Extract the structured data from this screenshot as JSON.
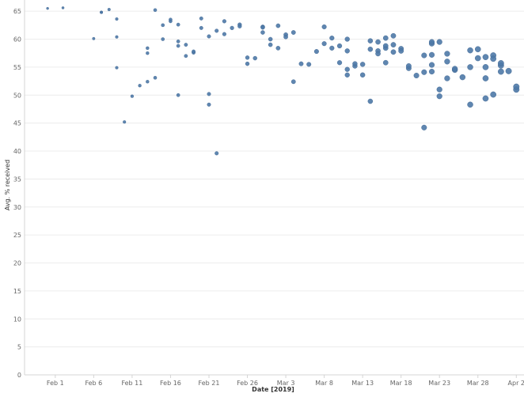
{
  "chart_data": {
    "type": "scatter",
    "title": "",
    "xlabel": "Date [2019]",
    "ylabel": "Avg. % received",
    "ylim": [
      0,
      67
    ],
    "xlim": [
      "2019-01-28",
      "2019-04-03"
    ],
    "grid": true,
    "x_ticks": [
      {
        "date": "2019-02-01",
        "label": "Feb 1"
      },
      {
        "date": "2019-02-06",
        "label": "Feb 6"
      },
      {
        "date": "2019-02-11",
        "label": "Feb 11"
      },
      {
        "date": "2019-02-16",
        "label": "Feb 16"
      },
      {
        "date": "2019-02-21",
        "label": "Feb 21"
      },
      {
        "date": "2019-02-26",
        "label": "Feb 26"
      },
      {
        "date": "2019-03-03",
        "label": "Mar 3"
      },
      {
        "date": "2019-03-08",
        "label": "Mar 8"
      },
      {
        "date": "2019-03-13",
        "label": "Mar 13"
      },
      {
        "date": "2019-03-18",
        "label": "Mar 18"
      },
      {
        "date": "2019-03-23",
        "label": "Mar 23"
      },
      {
        "date": "2019-03-28",
        "label": "Mar 28"
      },
      {
        "date": "2019-04-02",
        "label": "Apr 2"
      }
    ],
    "y_ticks": [
      0,
      5,
      10,
      15,
      20,
      25,
      30,
      35,
      40,
      45,
      50,
      55,
      60,
      65
    ],
    "series": [
      {
        "points": [
          [
            "2019-01-31",
            65.5
          ],
          [
            "2019-02-02",
            65.6
          ],
          [
            "2019-02-06",
            60.1
          ],
          [
            "2019-02-07",
            64.8
          ],
          [
            "2019-02-07",
            64.8
          ],
          [
            "2019-02-08",
            65.3
          ],
          [
            "2019-02-09",
            63.6
          ],
          [
            "2019-02-09",
            54.9
          ],
          [
            "2019-02-09",
            60.4
          ],
          [
            "2019-02-10",
            45.2
          ],
          [
            "2019-02-11",
            49.8
          ],
          [
            "2019-02-12",
            51.7
          ],
          [
            "2019-02-13",
            58.4
          ],
          [
            "2019-02-13",
            57.5
          ],
          [
            "2019-02-13",
            52.4
          ],
          [
            "2019-02-14",
            53.1
          ],
          [
            "2019-02-14",
            65.2
          ],
          [
            "2019-02-15",
            62.5
          ],
          [
            "2019-02-15",
            60.0
          ],
          [
            "2019-02-16",
            63.2
          ],
          [
            "2019-02-16",
            63.5
          ],
          [
            "2019-02-17",
            62.6
          ],
          [
            "2019-02-17",
            59.6
          ],
          [
            "2019-02-17",
            58.8
          ],
          [
            "2019-02-17",
            50.0
          ],
          [
            "2019-02-18",
            59.0
          ],
          [
            "2019-02-18",
            57.0
          ],
          [
            "2019-02-19",
            57.6
          ],
          [
            "2019-02-19",
            57.8
          ],
          [
            "2019-02-20",
            62.0
          ],
          [
            "2019-02-20",
            63.7
          ],
          [
            "2019-02-21",
            60.5
          ],
          [
            "2019-02-21",
            50.2
          ],
          [
            "2019-02-21",
            48.3
          ],
          [
            "2019-02-22",
            39.6
          ],
          [
            "2019-02-22",
            61.5
          ],
          [
            "2019-02-23",
            63.2
          ],
          [
            "2019-02-23",
            60.9
          ],
          [
            "2019-02-24",
            62.0
          ],
          [
            "2019-02-25",
            62.6
          ],
          [
            "2019-02-25",
            62.3
          ],
          [
            "2019-02-26",
            56.7
          ],
          [
            "2019-02-26",
            55.6
          ],
          [
            "2019-02-27",
            56.6
          ],
          [
            "2019-02-28",
            62.2
          ],
          [
            "2019-02-28",
            62.1
          ],
          [
            "2019-02-28",
            61.2
          ],
          [
            "2019-03-01",
            59.0
          ],
          [
            "2019-03-01",
            60.0
          ],
          [
            "2019-03-02",
            62.4
          ],
          [
            "2019-03-02",
            58.4
          ],
          [
            "2019-03-03",
            60.8
          ],
          [
            "2019-03-03",
            60.4
          ],
          [
            "2019-03-04",
            61.2
          ],
          [
            "2019-03-04",
            52.4
          ],
          [
            "2019-03-05",
            55.6
          ],
          [
            "2019-03-06",
            55.5
          ],
          [
            "2019-03-07",
            57.8
          ],
          [
            "2019-03-08",
            62.2
          ],
          [
            "2019-03-08",
            59.2
          ],
          [
            "2019-03-09",
            60.2
          ],
          [
            "2019-03-09",
            58.4
          ],
          [
            "2019-03-10",
            55.8
          ],
          [
            "2019-03-10",
            58.8
          ],
          [
            "2019-03-11",
            60.0
          ],
          [
            "2019-03-11",
            57.9
          ],
          [
            "2019-03-11",
            54.6
          ],
          [
            "2019-03-11",
            53.6
          ],
          [
            "2019-03-12",
            55.2
          ],
          [
            "2019-03-12",
            55.6
          ],
          [
            "2019-03-13",
            53.6
          ],
          [
            "2019-03-13",
            55.5
          ],
          [
            "2019-03-14",
            59.7
          ],
          [
            "2019-03-14",
            48.9
          ],
          [
            "2019-03-14",
            58.2
          ],
          [
            "2019-03-15",
            59.5
          ],
          [
            "2019-03-15",
            57.9
          ],
          [
            "2019-03-15",
            57.4
          ],
          [
            "2019-03-16",
            60.2
          ],
          [
            "2019-03-16",
            58.4
          ],
          [
            "2019-03-16",
            55.8
          ],
          [
            "2019-03-16",
            58.8
          ],
          [
            "2019-03-17",
            60.6
          ],
          [
            "2019-03-17",
            57.7
          ],
          [
            "2019-03-17",
            59.0
          ],
          [
            "2019-03-18",
            58.3
          ],
          [
            "2019-03-18",
            57.9
          ],
          [
            "2019-03-19",
            54.8
          ],
          [
            "2019-03-19",
            55.2
          ],
          [
            "2019-03-20",
            53.5
          ],
          [
            "2019-03-21",
            54.1
          ],
          [
            "2019-03-21",
            44.2
          ],
          [
            "2019-03-21",
            57.1
          ],
          [
            "2019-03-22",
            54.2
          ],
          [
            "2019-03-22",
            55.4
          ],
          [
            "2019-03-22",
            57.2
          ],
          [
            "2019-03-22",
            59.2
          ],
          [
            "2019-03-22",
            59.5
          ],
          [
            "2019-03-23",
            51.0
          ],
          [
            "2019-03-23",
            49.8
          ],
          [
            "2019-03-23",
            59.5
          ],
          [
            "2019-03-24",
            56.0
          ],
          [
            "2019-03-24",
            57.4
          ],
          [
            "2019-03-24",
            53.0
          ],
          [
            "2019-03-25",
            54.5
          ],
          [
            "2019-03-25",
            54.7
          ],
          [
            "2019-03-26",
            53.2
          ],
          [
            "2019-03-27",
            55.0
          ],
          [
            "2019-03-27",
            58.0
          ],
          [
            "2019-03-27",
            48.3
          ],
          [
            "2019-03-28",
            58.2
          ],
          [
            "2019-03-28",
            56.6
          ],
          [
            "2019-03-29",
            56.8
          ],
          [
            "2019-03-29",
            55.0
          ],
          [
            "2019-03-29",
            53.0
          ],
          [
            "2019-03-29",
            49.4
          ],
          [
            "2019-03-30",
            50.1
          ],
          [
            "2019-03-30",
            57.1
          ],
          [
            "2019-03-30",
            56.5
          ],
          [
            "2019-03-31",
            55.3
          ],
          [
            "2019-03-31",
            55.7
          ],
          [
            "2019-03-31",
            54.2
          ],
          [
            "2019-04-01",
            54.3
          ],
          [
            "2019-04-02",
            51.0
          ],
          [
            "2019-04-02",
            51.5
          ]
        ]
      }
    ]
  }
}
